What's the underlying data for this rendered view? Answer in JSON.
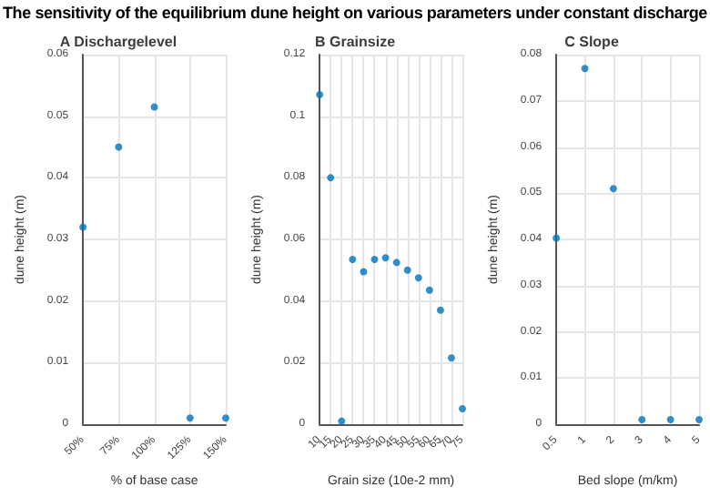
{
  "chart_data": [
    {
      "type": "scatter",
      "title": "The sensitivity of the equilibrium dune height on various parameters under constant discharge",
      "subtitle": "A Dischargelevel",
      "xlabel": "% of base case",
      "ylabel": "dune height (m)",
      "categories": [
        "50%",
        "75%",
        "100%",
        "125%",
        "150%"
      ],
      "series": [
        {
          "color": "#0072bd",
          "values": [
            0.032,
            0.045,
            0.0515,
            0.001,
            0.001
          ]
        }
      ],
      "ylim": [
        0,
        0.06
      ],
      "yticks": [
        0,
        0.01,
        0.02,
        0.03,
        0.04,
        0.05,
        0.06
      ],
      "grid": true,
      "marker": "circle"
    },
    {
      "type": "scatter",
      "title": "B Grainsize",
      "xlabel": "Grain size (10e-2 mm)",
      "ylabel": "dune height (m)",
      "categories": [
        "10",
        "15",
        "20",
        "25",
        "30",
        "35",
        "40",
        "45",
        "50",
        "55",
        "60",
        "65",
        "70",
        "75"
      ],
      "series": [
        {
          "color": "#0072bd",
          "values": [
            0.107,
            0.08,
            0.001,
            0.0535,
            0.0495,
            0.0535,
            0.054,
            0.0525,
            0.05,
            0.0475,
            0.0435,
            0.037,
            0.0215,
            0.005
          ]
        }
      ],
      "ylim": [
        0,
        0.12
      ],
      "yticks": [
        0,
        0.02,
        0.04,
        0.06,
        0.08,
        0.1,
        0.12
      ],
      "grid": true,
      "marker": "circle"
    },
    {
      "type": "scatter",
      "title": "C Slope",
      "xlabel": "Bed slope (m/km)",
      "ylabel": "dune height (m)",
      "categories": [
        "0.5",
        "1",
        "2",
        "3",
        "4",
        "5"
      ],
      "series": [
        {
          "color": "#0072bd",
          "values": [
            0.0403,
            0.077,
            0.051,
            0.001,
            0.001,
            0.001
          ]
        }
      ],
      "ylim": [
        0,
        0.08
      ],
      "yticks": [
        0,
        0.01,
        0.02,
        0.03,
        0.04,
        0.05,
        0.06,
        0.07,
        0.08
      ],
      "grid": true,
      "marker": "circle"
    }
  ]
}
